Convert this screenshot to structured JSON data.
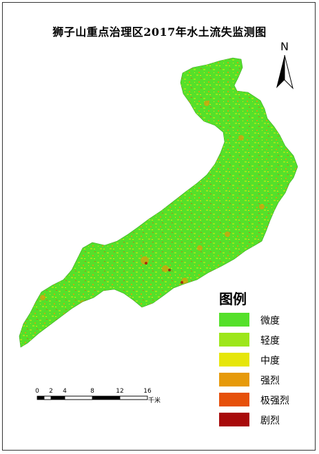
{
  "title": "狮子山重点治理区2017年水土流失监测图",
  "north_arrow": {
    "letter": "N"
  },
  "legend": {
    "title": "图例",
    "items": [
      {
        "label": "微度",
        "color": "#55e02a"
      },
      {
        "label": "轻度",
        "color": "#9de61a"
      },
      {
        "label": "中度",
        "color": "#e6e60a"
      },
      {
        "label": "强烈",
        "color": "#e69a0a"
      },
      {
        "label": "极强烈",
        "color": "#e6500a"
      },
      {
        "label": "剧烈",
        "color": "#a80a0a"
      }
    ]
  },
  "scale_bar": {
    "ticks": [
      "0",
      "2",
      "4",
      "8",
      "12",
      "16"
    ],
    "unit": "千米"
  },
  "map": {
    "base_color": "#55e02a"
  }
}
